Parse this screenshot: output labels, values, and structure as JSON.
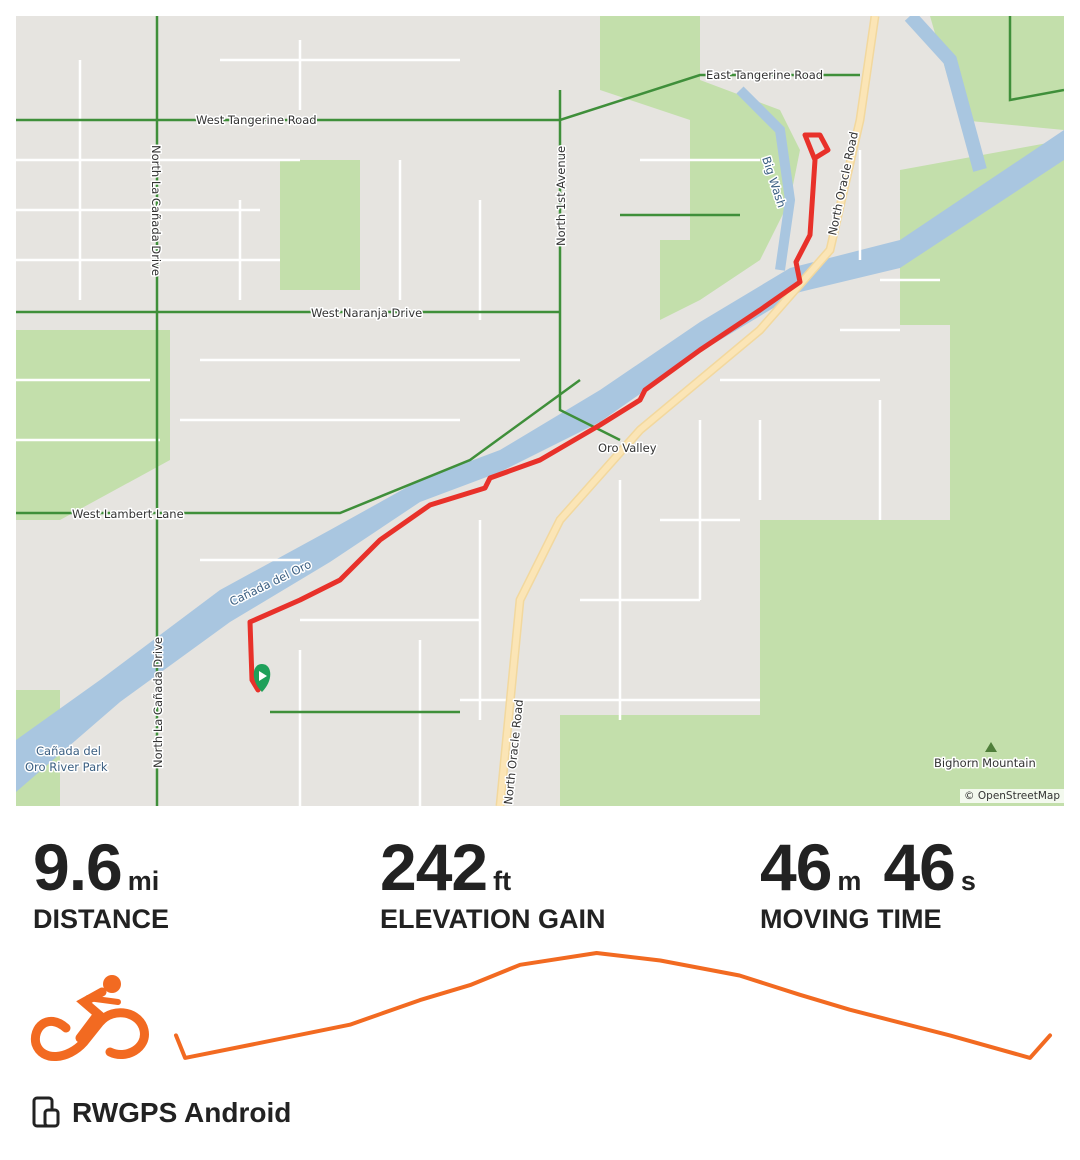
{
  "map": {
    "attribution": "© OpenStreetMap",
    "labels": {
      "east_tangerine": "East Tangerine Road",
      "west_tangerine": "West Tangerine Road",
      "north_la_canada_top": "North La Cañada Drive",
      "north_la_canada_bottom": "North La Cañada Drive",
      "north_1st": "North 1st Avenue",
      "big_wash": "Big Wash",
      "north_oracle_top": "North Oracle Road",
      "north_oracle_bottom": "North Oracle Road",
      "west_naranja": "West Naranja Drive",
      "oro_valley": "Oro Valley",
      "west_lambert": "West Lambert Lane",
      "canada_del_oro": "Cañada del Oro",
      "park_line1": "Cañada del",
      "park_line2": "Oro River Park",
      "bighorn": "Bighorn Mountain"
    },
    "colors": {
      "route": "#e8312a",
      "start_marker": "#1fa05a",
      "river": "#a9c6e0",
      "park": "#c3dfab",
      "major_road": "#fbe5b6"
    }
  },
  "stats": {
    "distance": {
      "value": "9.6",
      "unit": "mi",
      "label": "DISTANCE"
    },
    "elevation": {
      "value": "242",
      "unit": "ft",
      "label": "ELEVATION GAIN"
    },
    "moving_time": {
      "minutes": "46",
      "m_unit": "m",
      "seconds": "46",
      "s_unit": "s",
      "label": "MOVING TIME"
    }
  },
  "activity_icon": "cycling-icon",
  "accent_color": "#f26a21",
  "elevation_profile_relative": [
    [
      0,
      23
    ],
    [
      0.1,
      2
    ],
    [
      0.81,
      14
    ],
    [
      1.91,
      33
    ],
    [
      2.68,
      56
    ],
    [
      3.23,
      70
    ],
    [
      3.78,
      89
    ],
    [
      4.62,
      100
    ],
    [
      5.32,
      93
    ],
    [
      6.19,
      79
    ],
    [
      6.85,
      61
    ],
    [
      7.4,
      47
    ],
    [
      8.5,
      23
    ],
    [
      9.38,
      2
    ],
    [
      9.6,
      23
    ]
  ],
  "device": {
    "icon": "phone-watch-icon",
    "label": "RWGPS Android"
  }
}
